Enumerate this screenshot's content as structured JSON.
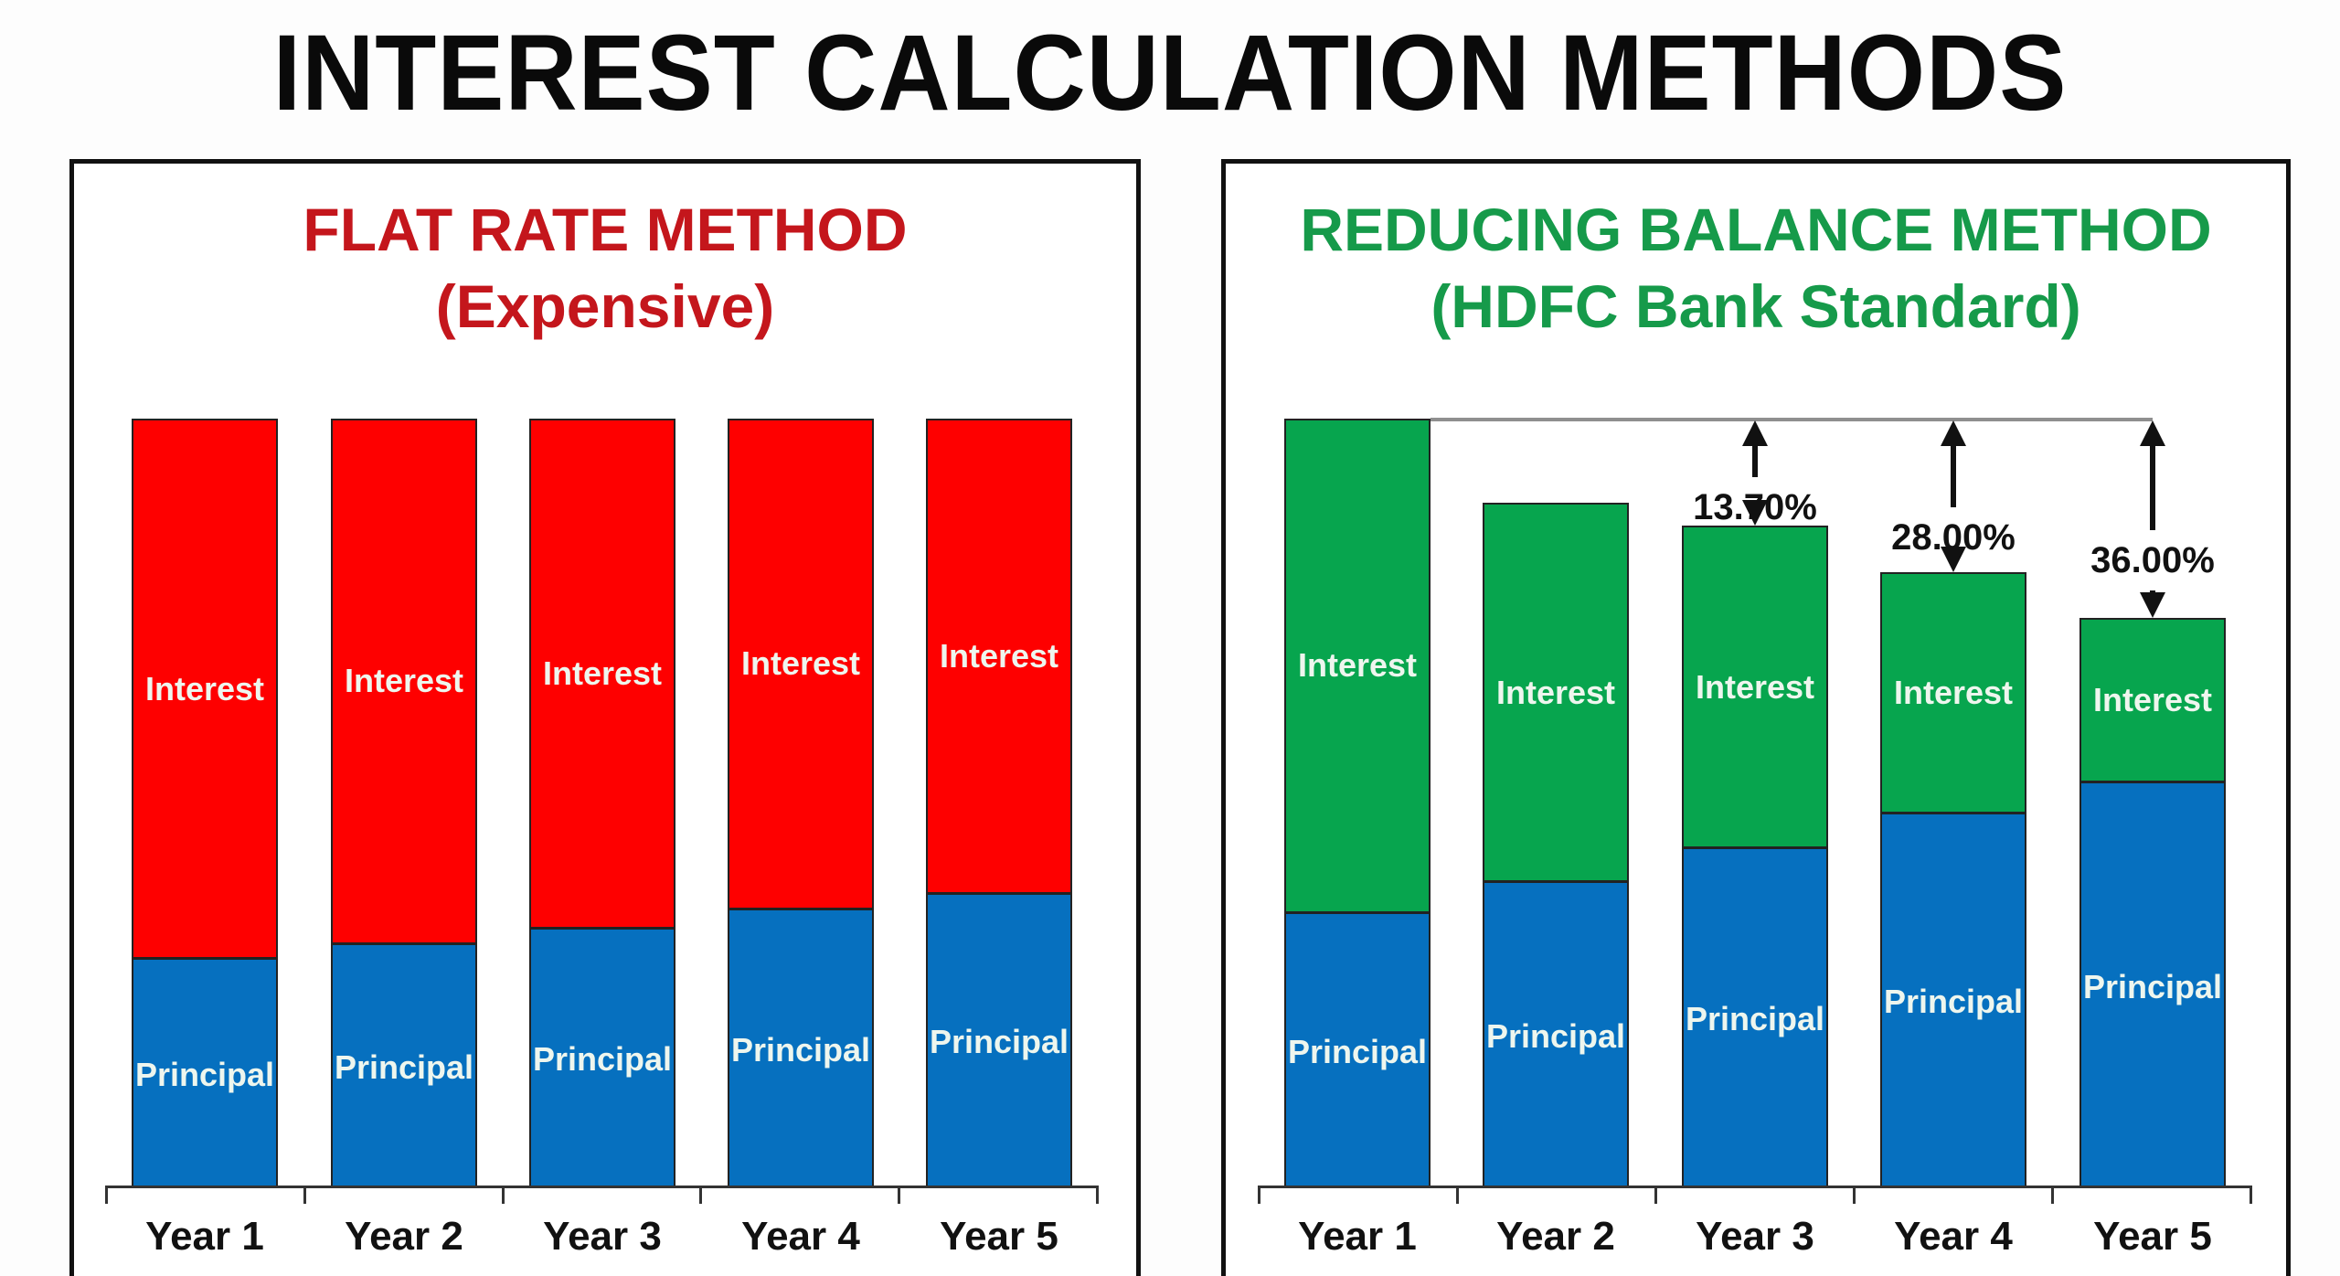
{
  "title": "INTEREST CALCULATION METHODS",
  "left_panel": {
    "title": "FLAT RATE METHOD",
    "subtitle": "(Expensive)",
    "color": "#c4161c",
    "interest_color": "#fe0000",
    "principal_color": "#0670bf"
  },
  "right_panel": {
    "title": "REDUCING BALANCE METHOD",
    "subtitle": "(HDFC Bank Standard)",
    "color": "#169a4a",
    "interest_color": "#07a54e",
    "principal_color": "#0670bf",
    "annotations": [
      "13.70%",
      "28.00%",
      "36.00%"
    ]
  },
  "segment_labels": {
    "interest": "Interest",
    "principal": "Principal"
  },
  "x_labels": [
    "Year 1",
    "Year 2",
    "Year 3",
    "Year 4",
    "Year 5"
  ],
  "chart_data": [
    {
      "type": "bar",
      "stacked": true,
      "title": "FLAT RATE METHOD (Expensive)",
      "categories": [
        "Year 1",
        "Year 2",
        "Year 3",
        "Year 4",
        "Year 5"
      ],
      "series": [
        {
          "name": "Principal",
          "color": "#0670bf",
          "values": [
            30,
            32,
            34,
            36.5,
            38.5
          ]
        },
        {
          "name": "Interest",
          "color": "#fe0000",
          "values": [
            70,
            68,
            66,
            63.5,
            61.5
          ]
        }
      ],
      "totals": [
        100,
        100,
        100,
        100,
        100
      ],
      "xlabel": "",
      "ylabel": "",
      "ylim": [
        0,
        100
      ],
      "grid": false,
      "legend": "none (in-bar labels)"
    },
    {
      "type": "bar",
      "stacked": true,
      "title": "REDUCING BALANCE METHOD (HDFC Bank Standard)",
      "categories": [
        "Year 1",
        "Year 2",
        "Year 3",
        "Year 4",
        "Year 5"
      ],
      "series": [
        {
          "name": "Principal",
          "color": "#0670bf",
          "values": [
            36,
            40,
            44.5,
            49,
            53
          ]
        },
        {
          "name": "Interest",
          "color": "#07a54e",
          "values": [
            64,
            49,
            41.5,
            31,
            21
          ]
        }
      ],
      "totals": [
        100,
        89,
        86,
        80,
        74
      ],
      "annotations": [
        {
          "category": "Year 3",
          "text": "13.70%"
        },
        {
          "category": "Year 4",
          "text": "28.00%"
        },
        {
          "category": "Year 5",
          "text": "36.00%"
        }
      ],
      "xlabel": "",
      "ylabel": "",
      "ylim": [
        0,
        100
      ],
      "grid": false,
      "legend": "none (in-bar labels)"
    }
  ]
}
